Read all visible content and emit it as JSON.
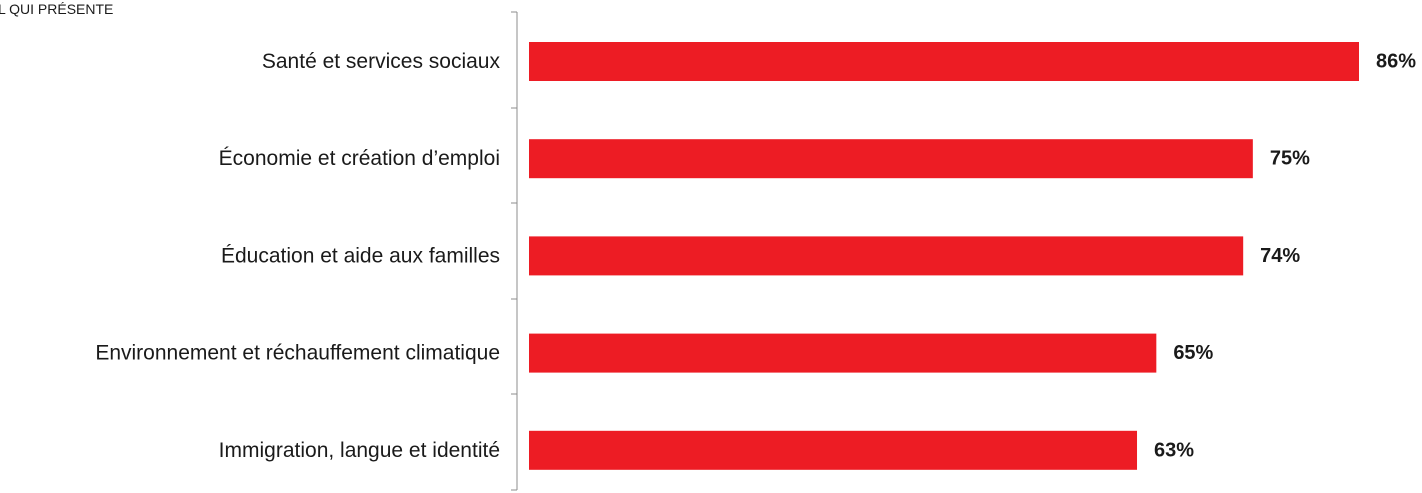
{
  "header": {
    "title_fragment": "L QUI PRÉSENTE"
  },
  "chart_data": {
    "type": "bar",
    "orientation": "horizontal",
    "categories": [
      "Santé et services sociaux",
      "Économie et création d’emploi",
      "Éducation et aide aux familles",
      "Environnement et réchauffement climatique",
      "Immigration, langue et identité"
    ],
    "values": [
      86,
      75,
      74,
      65,
      63
    ],
    "value_labels": [
      "86%",
      "75%",
      "74%",
      "65%",
      "63%"
    ],
    "bar_color": "#ed1c24",
    "xlim": [
      0,
      100
    ],
    "grid": false,
    "legend": "none"
  }
}
